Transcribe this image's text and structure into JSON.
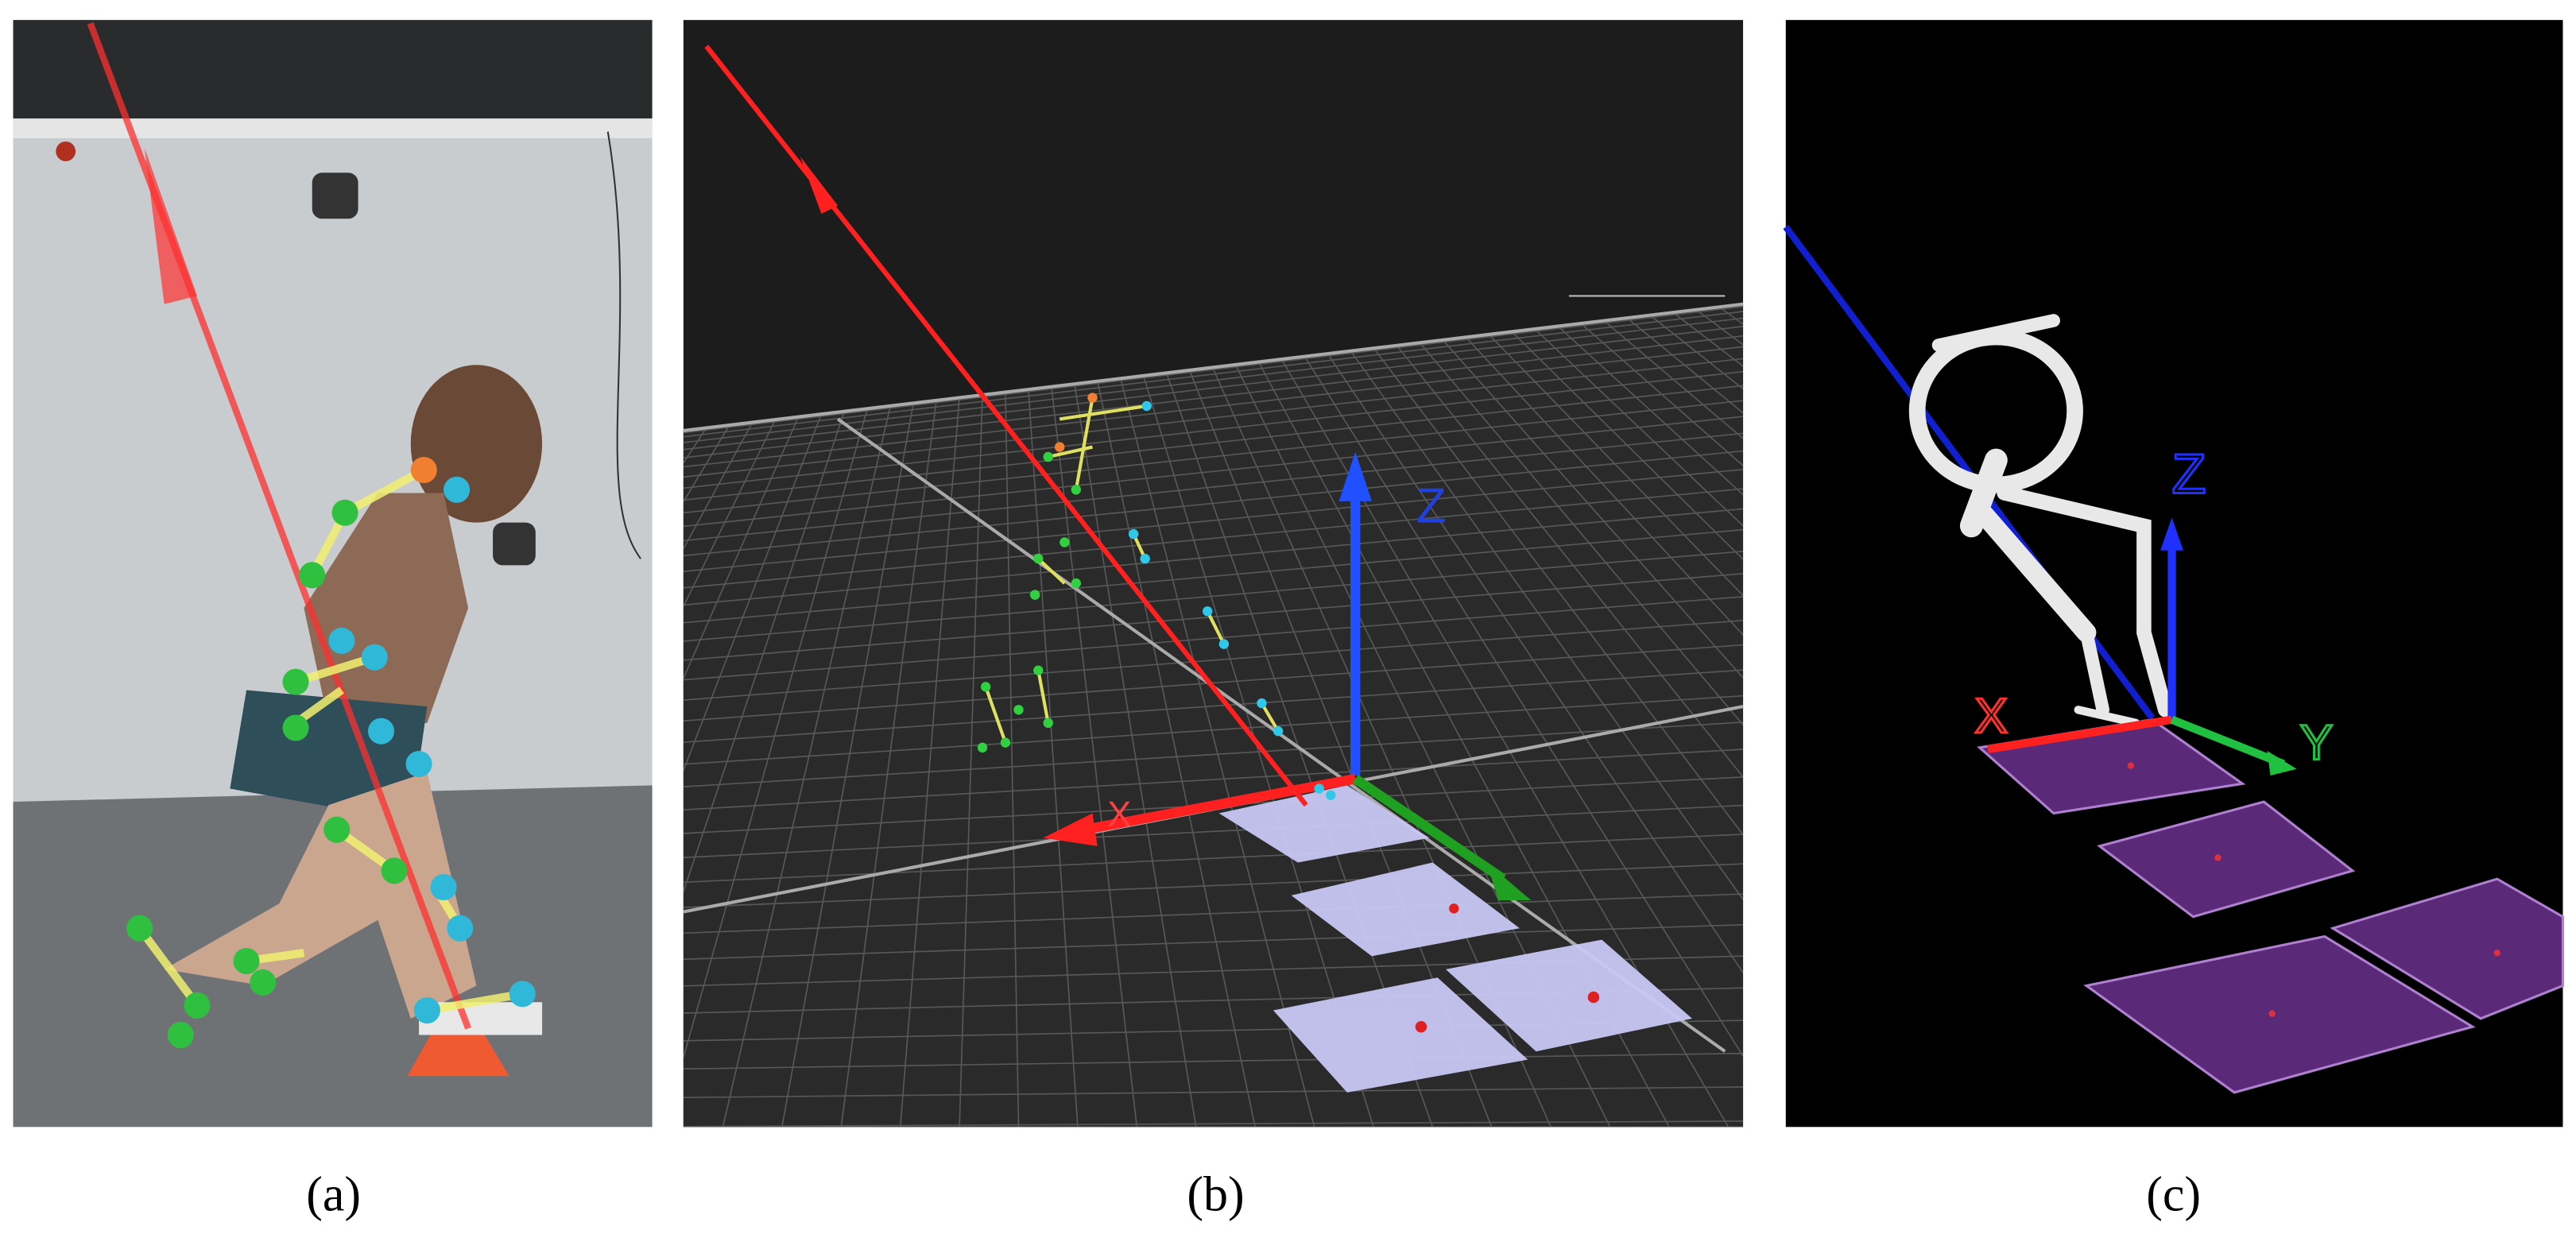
{
  "panels": [
    {
      "caption": "(a)"
    },
    {
      "caption": "(b)",
      "axis_labels": [
        "Z",
        "X"
      ]
    },
    {
      "caption": "(c)",
      "axis_labels": [
        "Z",
        "X",
        "Y"
      ]
    }
  ]
}
